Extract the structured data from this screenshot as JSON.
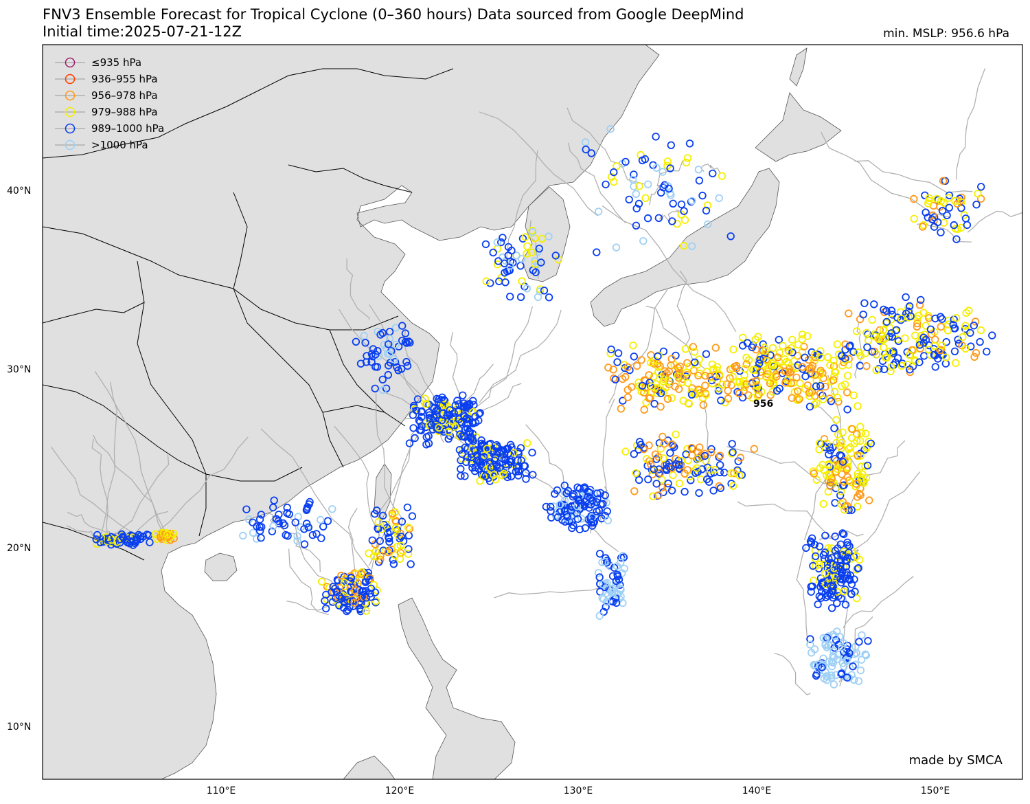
{
  "header": {
    "title_line1": "FNV3 Ensemble Forecast for Tropical Cyclone (0–360 hours) Data sourced from Google DeepMind",
    "title_line2": "Initial time:2025-07-21-12Z",
    "min_mslp": "min. MSLP: 956.6 hPa"
  },
  "legend": [
    {
      "label": "≤935 hPa",
      "color": "#a0226e"
    },
    {
      "label": "936–955 hPa",
      "color": "#ff4000"
    },
    {
      "label": "956–978 hPa",
      "color": "#ff9a1a"
    },
    {
      "label": "979–988 hPa",
      "color": "#f5ef00"
    },
    {
      "label": "989–1000 hPa",
      "color": "#0a3ff0"
    },
    {
      "label": ">1000 hPa",
      "color": "#9fd0f5"
    }
  ],
  "map": {
    "lat_labels": [
      "40°N",
      "30°N",
      "20°N",
      "10°N"
    ],
    "lon_labels": [
      "110°E",
      "120°E",
      "130°E",
      "140°E",
      "150°E"
    ],
    "min_marker_label": "956",
    "credit": "made by SMCA",
    "land_color": "#e0e0e0",
    "track_color": "#b0b0b0"
  }
}
